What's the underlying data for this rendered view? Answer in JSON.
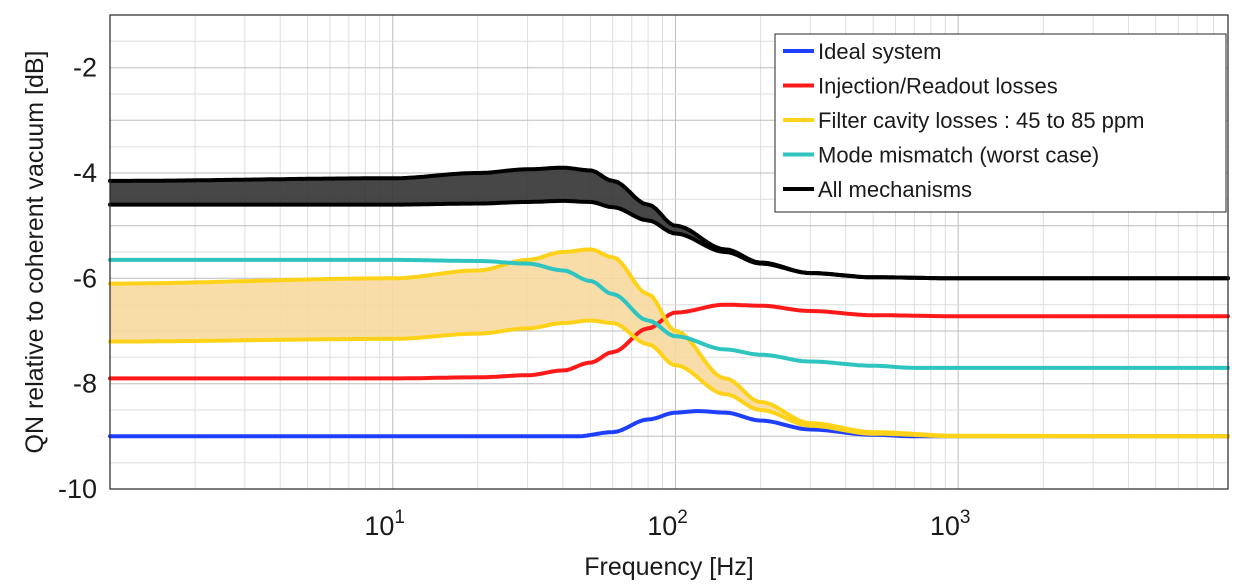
{
  "chart_data": {
    "type": "line",
    "title": "",
    "xlabel": "Frequency [Hz]",
    "ylabel": "QN relative to coherent vacuum [dB]",
    "xscale": "log",
    "xlim": [
      1,
      9000
    ],
    "ylim": [
      -10,
      -1
    ],
    "grid": true,
    "legend_position": "top-right",
    "x_ticks": [
      {
        "value": 10,
        "base": "10",
        "exp": "1"
      },
      {
        "value": 100,
        "base": "10",
        "exp": "2"
      },
      {
        "value": 1000,
        "base": "10",
        "exp": "3"
      }
    ],
    "y_ticks": [
      {
        "value": -10,
        "label": "-10"
      },
      {
        "value": -8,
        "label": "-8"
      },
      {
        "value": -6,
        "label": "-6"
      },
      {
        "value": -4,
        "label": "-4"
      },
      {
        "value": -2,
        "label": "-2"
      }
    ],
    "legend": [
      {
        "label": "Ideal system",
        "color": "#1f3fff"
      },
      {
        "label": "Injection/Readout losses",
        "color": "#ff1a1a"
      },
      {
        "label": "Filter cavity losses : 45 to 85 ppm",
        "color": "#ffd21a"
      },
      {
        "label": "Mode mismatch (worst case)",
        "color": "#2ec4c0"
      },
      {
        "label": "All mechanisms",
        "color": "#000000"
      }
    ],
    "bands": [
      {
        "series": "All mechanisms",
        "fill": "#333333",
        "x": [
          1,
          10,
          20,
          30,
          40,
          50,
          60,
          80,
          100,
          150,
          200,
          300,
          500,
          1000,
          9000
        ],
        "upper": [
          -4.15,
          -4.1,
          -4.0,
          -3.93,
          -3.9,
          -3.95,
          -4.15,
          -4.6,
          -5.0,
          -5.45,
          -5.7,
          -5.9,
          -5.98,
          -6.0,
          -6.0
        ],
        "lower": [
          -4.6,
          -4.6,
          -4.58,
          -4.55,
          -4.53,
          -4.55,
          -4.65,
          -4.9,
          -5.15,
          -5.5,
          -5.72,
          -5.9,
          -5.98,
          -6.0,
          -6.0
        ]
      },
      {
        "series": "Filter cavity losses : 45 to 85 ppm",
        "fill": "#f8d9a0",
        "x": [
          1,
          10,
          20,
          30,
          40,
          50,
          60,
          80,
          100,
          150,
          200,
          300,
          500,
          1000,
          9000
        ],
        "upper": [
          -6.1,
          -6.0,
          -5.85,
          -5.65,
          -5.5,
          -5.45,
          -5.6,
          -6.3,
          -7.0,
          -7.9,
          -8.35,
          -8.75,
          -8.92,
          -8.99,
          -9.0
        ],
        "lower": [
          -7.2,
          -7.15,
          -7.05,
          -6.95,
          -6.85,
          -6.8,
          -6.85,
          -7.25,
          -7.65,
          -8.2,
          -8.5,
          -8.8,
          -8.95,
          -9.0,
          -9.0
        ]
      }
    ],
    "series": [
      {
        "name": "Ideal system",
        "color": "#1f3fff",
        "x": [
          1,
          10,
          30,
          45,
          60,
          80,
          100,
          120,
          150,
          200,
          300,
          500,
          700,
          1000,
          9000
        ],
        "y": [
          -9.0,
          -9.0,
          -9.0,
          -9.0,
          -8.92,
          -8.68,
          -8.55,
          -8.52,
          -8.55,
          -8.7,
          -8.87,
          -8.97,
          -9.0,
          -9.0,
          -9.0
        ]
      },
      {
        "name": "Injection/Readout losses",
        "color": "#ff1a1a",
        "x": [
          1,
          10,
          20,
          30,
          40,
          50,
          60,
          80,
          100,
          150,
          200,
          300,
          500,
          1000,
          9000
        ],
        "y": [
          -7.9,
          -7.9,
          -7.88,
          -7.84,
          -7.75,
          -7.6,
          -7.4,
          -6.95,
          -6.65,
          -6.5,
          -6.52,
          -6.62,
          -6.7,
          -6.72,
          -6.72
        ]
      },
      {
        "name": "Filter cavity losses : 45 to 85 ppm",
        "color": "#ffd21a",
        "x": [
          1,
          10,
          20,
          30,
          40,
          50,
          60,
          80,
          100,
          150,
          200,
          300,
          500,
          1000,
          9000
        ],
        "y": [
          -6.1,
          -6.0,
          -5.85,
          -5.65,
          -5.5,
          -5.45,
          -5.6,
          -6.3,
          -7.0,
          -7.9,
          -8.35,
          -8.75,
          -8.92,
          -8.99,
          -9.0
        ]
      },
      {
        "name": "Filter cavity losses : 45 to 85 ppm",
        "color": "#ffd21a",
        "x": [
          1,
          10,
          20,
          30,
          40,
          50,
          60,
          80,
          100,
          150,
          200,
          300,
          500,
          1000,
          9000
        ],
        "y": [
          -7.2,
          -7.15,
          -7.05,
          -6.95,
          -6.85,
          -6.8,
          -6.85,
          -7.25,
          -7.65,
          -8.2,
          -8.5,
          -8.8,
          -8.95,
          -9.0,
          -9.0
        ]
      },
      {
        "name": "Mode mismatch (worst case)",
        "color": "#2ec4c0",
        "x": [
          1,
          10,
          20,
          30,
          40,
          50,
          60,
          80,
          100,
          150,
          200,
          300,
          500,
          700,
          1000,
          9000
        ],
        "y": [
          -5.65,
          -5.65,
          -5.67,
          -5.72,
          -5.85,
          -6.05,
          -6.3,
          -6.8,
          -7.1,
          -7.35,
          -7.45,
          -7.58,
          -7.66,
          -7.7,
          -7.7,
          -7.7
        ]
      },
      {
        "name": "All mechanisms",
        "color": "#000000",
        "x": [
          1,
          10,
          20,
          30,
          40,
          50,
          60,
          80,
          100,
          150,
          200,
          300,
          500,
          1000,
          9000
        ],
        "y": [
          -4.15,
          -4.1,
          -4.0,
          -3.93,
          -3.9,
          -3.95,
          -4.15,
          -4.6,
          -5.0,
          -5.45,
          -5.7,
          -5.9,
          -5.98,
          -6.0,
          -6.0
        ]
      },
      {
        "name": "All mechanisms",
        "color": "#000000",
        "x": [
          1,
          10,
          20,
          30,
          40,
          50,
          60,
          80,
          100,
          150,
          200,
          300,
          500,
          1000,
          9000
        ],
        "y": [
          -4.6,
          -4.6,
          -4.58,
          -4.55,
          -4.53,
          -4.55,
          -4.65,
          -4.9,
          -5.15,
          -5.5,
          -5.72,
          -5.9,
          -5.98,
          -6.0,
          -6.0
        ]
      }
    ]
  }
}
